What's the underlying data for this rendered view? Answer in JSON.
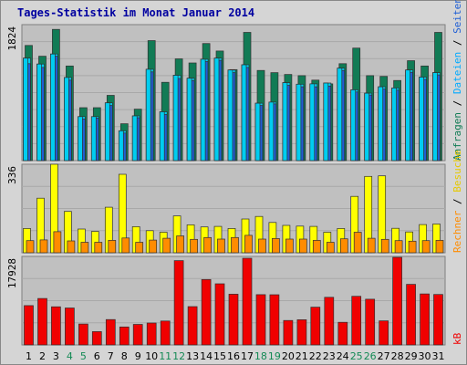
{
  "chart_data": {
    "title": "Tages-Statistik im Monat Januar 2014",
    "categories": [
      "1",
      "2",
      "3",
      "4",
      "5",
      "6",
      "7",
      "8",
      "9",
      "10",
      "11",
      "12",
      "13",
      "14",
      "15",
      "16",
      "17",
      "18",
      "19",
      "20",
      "21",
      "22",
      "23",
      "24",
      "25",
      "26",
      "27",
      "28",
      "29",
      "30",
      "31"
    ],
    "weekend_days": [
      "4",
      "5",
      "11",
      "12",
      "18",
      "19",
      "25",
      "26"
    ],
    "colors": {
      "background": "#d5d5d5",
      "plot": "#c0c0c0",
      "anfragen": "#117b55",
      "dateien": "#00cdf0",
      "seiten": "#1f5fd5",
      "besuche": "#ffff00",
      "rechner": "#ff8c00",
      "kb": "#f00000",
      "title": "#0000a0",
      "weekday_label": "#000000",
      "weekend_label": "#148a55"
    },
    "panels": [
      {
        "type": "bar",
        "ymax_label": "1824",
        "ylim": [
          0,
          1824
        ],
        "series": [
          {
            "name": "Anfragen",
            "values": [
              1545,
              1400,
              1760,
              1270,
              710,
              710,
              875,
              495,
              690,
              1610,
              1050,
              1365,
              1310,
              1570,
              1470,
              1220,
              1720,
              1210,
              1180,
              1155,
              1140,
              1080,
              1030,
              1300,
              1510,
              1140,
              1130,
              1075,
              1340,
              1270,
              1720
            ]
          },
          {
            "name": "Dateien",
            "values": [
              1375,
              1295,
              1430,
              1115,
              590,
              590,
              775,
              400,
              600,
              1225,
              655,
              1145,
              1105,
              1360,
              1375,
              1215,
              1285,
              770,
              785,
              1045,
              1025,
              1030,
              1040,
              1240,
              950,
              905,
              990,
              975,
              1215,
              1120,
              1180
            ]
          },
          {
            "name": "Seiten",
            "values": [
              1300,
              1250,
              1400,
              1080,
              560,
              570,
              740,
              370,
              575,
              1190,
              620,
              1100,
              1075,
              1330,
              1345,
              1180,
              1250,
              740,
              760,
              1010,
              990,
              990,
              1000,
              1210,
              920,
              880,
              960,
              945,
              1185,
              1090,
              1150
            ]
          }
        ],
        "right_label": [
          {
            "text": "Anfragen",
            "color": "#117b55"
          },
          {
            "text": " / ",
            "color": "#000000"
          },
          {
            "text": "Dateien",
            "color": "#00aaff"
          },
          {
            "text": " / ",
            "color": "#000000"
          },
          {
            "text": "Seiten",
            "color": "#1f5fd5"
          }
        ]
      },
      {
        "type": "bar",
        "ymax_label": "336",
        "ylim": [
          0,
          336
        ],
        "series": [
          {
            "name": "Besuche",
            "values": [
              92,
              207,
              336,
              157,
              90,
              81,
              173,
              298,
              99,
              84,
              78,
              140,
              106,
              98,
              100,
              92,
              128,
              138,
              115,
              104,
              101,
              100,
              78,
              92,
              214,
              290,
              292,
              93,
              79,
              107,
              109
            ]
          },
          {
            "name": "Rechner",
            "values": [
              46,
              49,
              80,
              45,
              40,
              40,
              47,
              56,
              40,
              48,
              55,
              64,
              51,
              58,
              52,
              58,
              66,
              52,
              54,
              52,
              52,
              47,
              40,
              53,
              78,
              55,
              51,
              46,
              44,
              46,
              47
            ]
          }
        ],
        "right_label": [
          {
            "text": "Rechner",
            "color": "#ff8c00"
          },
          {
            "text": " / ",
            "color": "#000000"
          },
          {
            "text": "Besuche",
            "color": "#e6c800"
          }
        ]
      },
      {
        "type": "bar",
        "ymax_label": "17928",
        "ylim": [
          0,
          17928
        ],
        "series": [
          {
            "name": "kB",
            "values": [
              7970,
              9410,
              7730,
              7490,
              4240,
              2690,
              5130,
              3650,
              4150,
              4440,
              4840,
              17080,
              7770,
              13250,
              12390,
              10270,
              17560,
              10180,
              10160,
              4950,
              5100,
              7660,
              9650,
              4590,
              9860,
              9260,
              4880,
              17750,
              12270,
              10340,
              10230
            ]
          }
        ],
        "right_label": [
          {
            "text": "kB",
            "color": "#f00000"
          }
        ]
      }
    ]
  }
}
